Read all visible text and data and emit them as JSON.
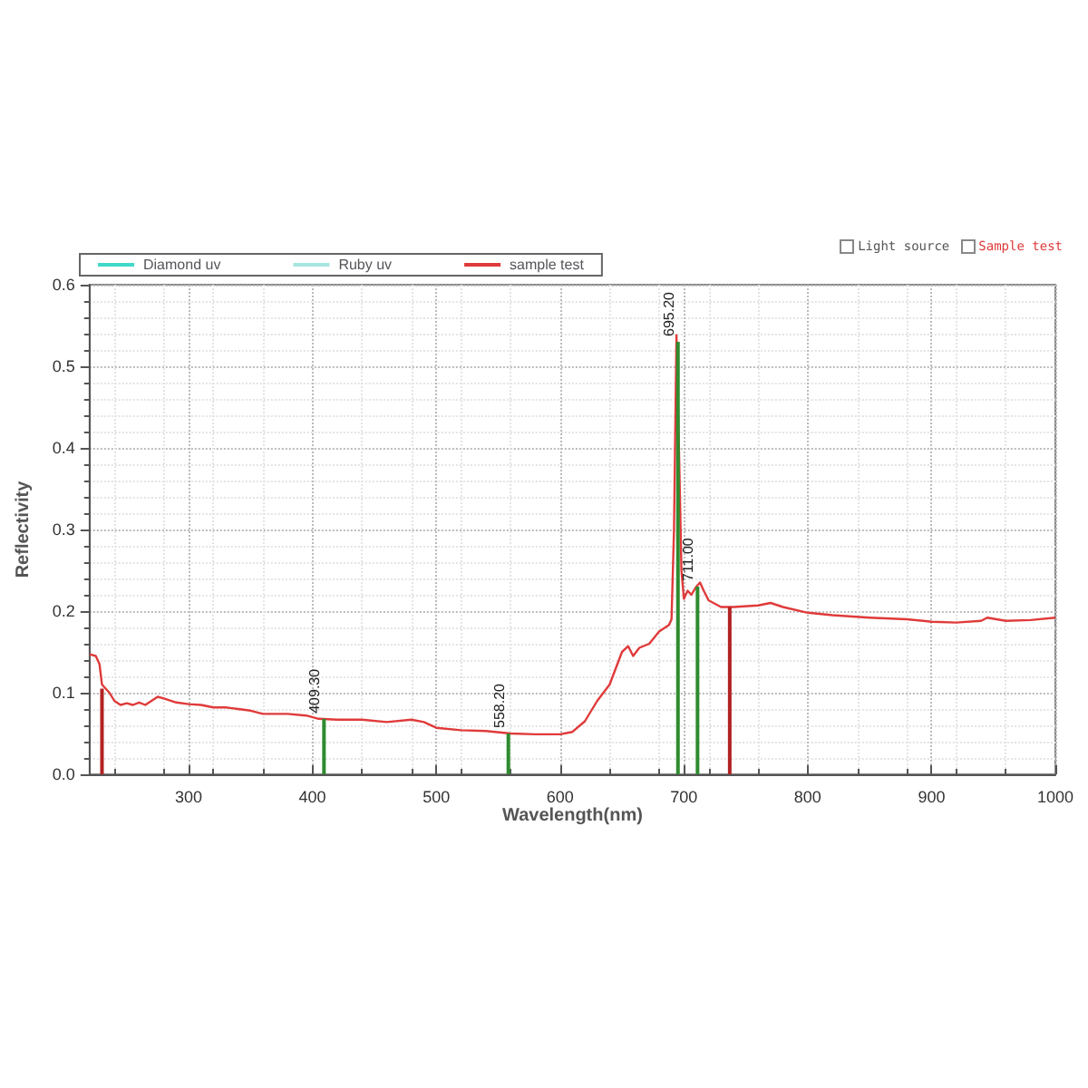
{
  "chart_data": {
    "type": "line",
    "xlabel": "Wavelength(nm)",
    "ylabel": "Reflectivity",
    "annotations": [
      "Light source",
      "Sample test",
      {
        "text": "409.30",
        "x": 409.3,
        "y": 0.068
      },
      {
        "text": "558.20",
        "x": 558.2,
        "y": 0.05
      },
      {
        "text": "695.20",
        "x": 695.2,
        "y": 0.53
      },
      {
        "text": "711.00",
        "x": 711.0,
        "y": 0.23
      }
    ],
    "xlim": [
      220,
      1000
    ],
    "xticks": [
      300,
      400,
      500,
      600,
      700,
      800,
      900,
      1000
    ],
    "ylim": [
      0,
      0.6
    ],
    "yticks": [
      {
        "value": 0,
        "label": "0.0"
      },
      {
        "value": 0.1,
        "label": "0.1"
      },
      {
        "value": 0.2,
        "label": "0.2"
      },
      {
        "value": 0.3,
        "label": "0.3"
      },
      {
        "value": 0.4,
        "label": "0.4"
      },
      {
        "value": 0.5,
        "label": "0.5"
      },
      {
        "value": 0.6,
        "label": "0.6"
      }
    ],
    "grid": true,
    "legend": "top left",
    "marker": "none",
    "line_style": "solid",
    "series": [
      {
        "name": "Diamond uv",
        "color": "#40d8c8"
      },
      {
        "name": "Ruby uv",
        "color": "#a8e4e0"
      },
      {
        "name": "sample test",
        "color": "#e03a3a",
        "x": [
          220,
          225,
          228,
          230,
          233,
          236,
          240,
          245,
          250,
          255,
          260,
          265,
          270,
          275,
          280,
          290,
          300,
          310,
          320,
          330,
          340,
          350,
          360,
          380,
          395,
          405,
          420,
          440,
          460,
          480,
          490,
          500,
          520,
          540,
          560,
          580,
          600,
          610,
          620,
          630,
          640,
          650,
          655,
          659,
          664,
          672,
          680,
          688,
          690,
          692,
          694,
          696,
          698,
          700,
          703,
          706,
          710,
          713,
          716,
          720,
          730,
          740,
          760,
          770,
          780,
          800,
          820,
          850,
          880,
          900,
          920,
          940,
          945,
          960,
          980,
          1000
        ],
        "values": [
          0.147,
          0.145,
          0.135,
          0.11,
          0.105,
          0.1,
          0.09,
          0.085,
          0.087,
          0.085,
          0.088,
          0.085,
          0.09,
          0.095,
          0.093,
          0.088,
          0.086,
          0.085,
          0.082,
          0.082,
          0.08,
          0.078,
          0.074,
          0.074,
          0.072,
          0.068,
          0.067,
          0.067,
          0.064,
          0.067,
          0.064,
          0.057,
          0.054,
          0.053,
          0.05,
          0.049,
          0.049,
          0.052,
          0.065,
          0.09,
          0.11,
          0.15,
          0.157,
          0.145,
          0.155,
          0.16,
          0.175,
          0.183,
          0.19,
          0.3,
          0.538,
          0.4,
          0.25,
          0.215,
          0.225,
          0.22,
          0.23,
          0.235,
          0.225,
          0.213,
          0.205,
          0.205,
          0.207,
          0.21,
          0.205,
          0.198,
          0.195,
          0.192,
          0.19,
          0.187,
          0.186,
          0.188,
          0.192,
          0.188,
          0.189,
          0.192
        ]
      },
      {
        "type": "bar",
        "color": "#2e8b2e",
        "x": [
          409.3,
          558.2,
          695.2,
          711.0
        ],
        "values": [
          0.068,
          0.05,
          0.53,
          0.23
        ]
      },
      {
        "type": "bar",
        "color": "#b22222",
        "x": [
          230,
          737
        ],
        "values": [
          0.105,
          0.205
        ]
      }
    ]
  }
}
